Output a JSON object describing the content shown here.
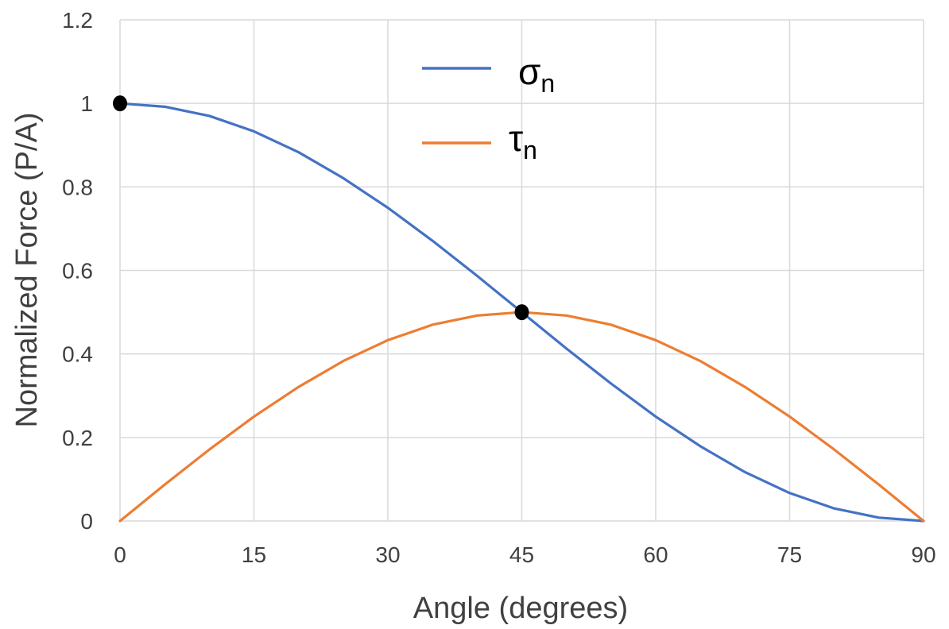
{
  "chart_data": {
    "type": "line",
    "title": "",
    "xlabel": "Angle (degrees)",
    "ylabel": "Normalized Force (P/A)",
    "xlim": [
      0,
      90
    ],
    "ylim": [
      0,
      1.2
    ],
    "xticks": [
      0,
      15,
      30,
      45,
      60,
      75,
      90
    ],
    "yticks": [
      0,
      0.2,
      0.4,
      0.6,
      0.8,
      1,
      1.2
    ],
    "ytick_labels": [
      "0",
      "0.2",
      "0.4",
      "0.6",
      "0.8",
      "1",
      "1.2"
    ],
    "grid": true,
    "legend_position": "top-center",
    "x": [
      0,
      5,
      10,
      15,
      20,
      25,
      30,
      35,
      40,
      45,
      50,
      55,
      60,
      65,
      70,
      75,
      80,
      85,
      90
    ],
    "series": [
      {
        "name": "σ",
        "sub": "n",
        "color": "#4472c4",
        "values": [
          1,
          0.992,
          0.97,
          0.933,
          0.883,
          0.821,
          0.75,
          0.671,
          0.587,
          0.5,
          0.413,
          0.329,
          0.25,
          0.179,
          0.117,
          0.067,
          0.03,
          0.008,
          0
        ]
      },
      {
        "name": "τ",
        "sub": "n",
        "color": "#ed7d31",
        "values": [
          0,
          0.087,
          0.171,
          0.25,
          0.321,
          0.383,
          0.433,
          0.47,
          0.492,
          0.5,
          0.492,
          0.47,
          0.433,
          0.383,
          0.321,
          0.25,
          0.171,
          0.087,
          0
        ]
      }
    ],
    "markers": [
      {
        "x": 0,
        "y": 1
      },
      {
        "x": 45,
        "y": 0.5
      }
    ]
  }
}
